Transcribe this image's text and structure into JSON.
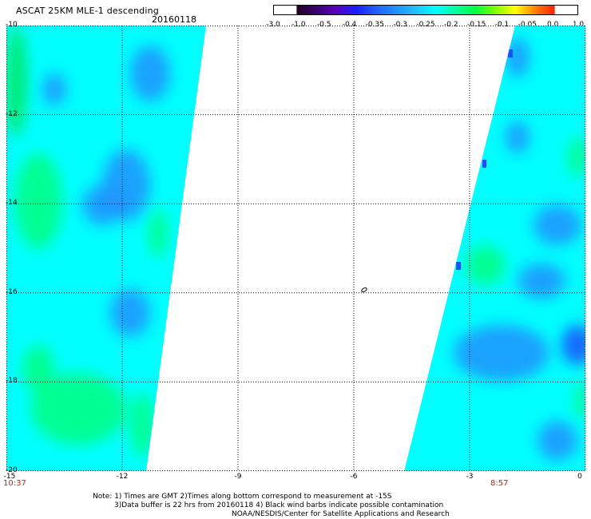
{
  "header": {
    "title": "ASCAT 25KM MLE-1 descending",
    "date": "20160118"
  },
  "colorbar": {
    "ticks": [
      "-3.0",
      "-1.0",
      "-0.5",
      "-0.4",
      "-0.35",
      "-0.3",
      "-0.25",
      "-0.2",
      "-0.15",
      "-0.1",
      "-0.05",
      "0.0",
      "1.0"
    ],
    "colors": [
      "#220020",
      "#3a0070",
      "#5a00c0",
      "#1a20ff",
      "#2060ff",
      "#2090ff",
      "#20c0ff",
      "#00ffff",
      "#00ffa0",
      "#00ff40",
      "#80ff00",
      "#ffff00",
      "#ff8000",
      "#ff2000"
    ]
  },
  "map": {
    "lat_labels": [
      "-10",
      "-12",
      "-14",
      "-16",
      "-18",
      "-20"
    ],
    "lon_labels": [
      "-15",
      "-12",
      "-9",
      "-6",
      "-3",
      "0"
    ],
    "lat_range": [
      -20,
      -10
    ],
    "lon_range": [
      -15,
      0
    ],
    "start_time": "10:37",
    "end_time": "8:57",
    "gridlines": true,
    "colors": {
      "cyan": "#00ffff",
      "blue": "#2090ff",
      "deep_blue": "#1a50ff",
      "green": "#00ff80",
      "bright_green": "#00e860"
    }
  },
  "notes": {
    "line1": "Note: 1) Times are GMT 2)Times along bottom correspond to measurement at -15S",
    "line2": "3)Data buffer is 22 hrs from 20160118 4) Black wind barbs indicate possible contamination",
    "line3": "NOAA/NESDIS/Center for Satellite Applications and Research"
  }
}
